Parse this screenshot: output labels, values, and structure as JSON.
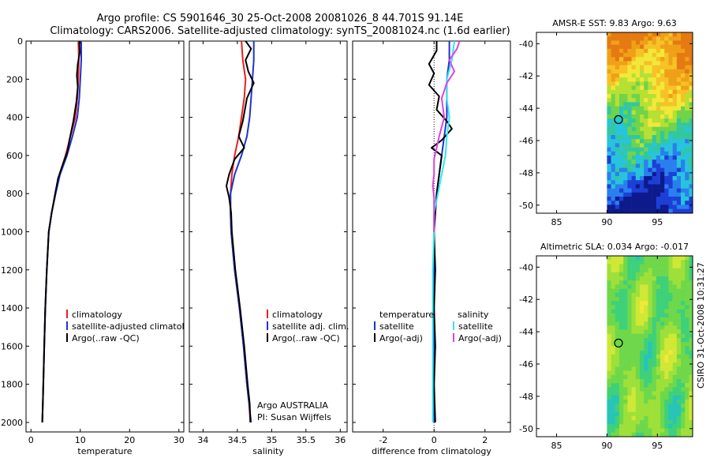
{
  "header": {
    "line1": "Argo profile: CS 5901646_30 25-Oct-2008 20081026_8 44.701S 91.14E",
    "line2": "Climatology: CARS2006. Satellite-adjusted climatology: synTS_20081024.nc (1.6d earlier)"
  },
  "side_stamp": "CSIRO 31-Oct-2008 10:31:27",
  "colors": {
    "climatology": "#e8201c",
    "satellite": "#1f33cf",
    "argo": "#000000",
    "sal_satellite": "#2fe6f0",
    "sal_argo": "#e040e0"
  },
  "chart_data": [
    {
      "id": "temperature",
      "type": "line",
      "xlabel": "temperature",
      "xlim": [
        -1,
        31
      ],
      "ylim": [
        2050,
        0
      ],
      "xticks": [
        0,
        10,
        20,
        30
      ],
      "yticks": [
        0,
        200,
        400,
        600,
        800,
        1000,
        1200,
        1400,
        1600,
        1800,
        2000
      ],
      "legend": [
        "climatology",
        "satellite-adjusted climatology",
        "Argo(..raw -QC)"
      ],
      "series": [
        {
          "name": "climatology",
          "color": "#e8201c",
          "points": [
            [
              9.6,
              0
            ],
            [
              9.7,
              100
            ],
            [
              9.6,
              200
            ],
            [
              9.4,
              300
            ],
            [
              9.0,
              400
            ],
            [
              8.0,
              500
            ],
            [
              7.0,
              600
            ],
            [
              5.8,
              700
            ],
            [
              5.0,
              800
            ],
            [
              4.2,
              900
            ],
            [
              3.6,
              1000
            ],
            [
              3.2,
              1200
            ],
            [
              2.9,
              1400
            ],
            [
              2.7,
              1600
            ],
            [
              2.5,
              1800
            ],
            [
              2.4,
              1900
            ],
            [
              2.3,
              2000
            ]
          ]
        },
        {
          "name": "satellite-adjusted climatology",
          "color": "#1f33cf",
          "points": [
            [
              10.2,
              0
            ],
            [
              10.2,
              100
            ],
            [
              10.0,
              200
            ],
            [
              9.8,
              300
            ],
            [
              9.4,
              400
            ],
            [
              8.4,
              500
            ],
            [
              7.3,
              600
            ],
            [
              5.9,
              700
            ],
            [
              5.0,
              800
            ],
            [
              4.2,
              900
            ],
            [
              3.6,
              1000
            ],
            [
              3.2,
              1200
            ],
            [
              2.9,
              1400
            ],
            [
              2.7,
              1600
            ],
            [
              2.5,
              1800
            ],
            [
              2.4,
              1900
            ],
            [
              2.3,
              2000
            ]
          ]
        },
        {
          "name": "Argo(..raw -QC)",
          "color": "#000000",
          "points": [
            [
              9.8,
              0
            ],
            [
              9.9,
              60
            ],
            [
              9.5,
              120
            ],
            [
              9.3,
              180
            ],
            [
              9.5,
              240
            ],
            [
              9.2,
              320
            ],
            [
              8.6,
              420
            ],
            [
              7.8,
              520
            ],
            [
              7.4,
              580
            ],
            [
              6.4,
              650
            ],
            [
              5.5,
              720
            ],
            [
              4.9,
              800
            ],
            [
              4.2,
              900
            ],
            [
              3.6,
              1000
            ],
            [
              3.2,
              1200
            ],
            [
              2.9,
              1400
            ],
            [
              2.7,
              1600
            ],
            [
              2.5,
              1800
            ],
            [
              2.4,
              1900
            ],
            [
              2.3,
              2000
            ]
          ]
        }
      ]
    },
    {
      "id": "salinity",
      "type": "line",
      "xlabel": "salinity",
      "xlim": [
        33.8,
        36.1
      ],
      "ylim": [
        2050,
        0
      ],
      "xticks": [
        34,
        34.5,
        35,
        35.5,
        36
      ],
      "legend": [
        "climatology",
        "satellite adj. clim.",
        "Argo(..raw -QC)"
      ],
      "annotation": [
        "Argo AUSTRALIA",
        "PI: Susan Wijffels"
      ],
      "series": [
        {
          "name": "climatology",
          "color": "#e8201c",
          "points": [
            [
              34.56,
              0
            ],
            [
              34.58,
              100
            ],
            [
              34.62,
              200
            ],
            [
              34.6,
              300
            ],
            [
              34.56,
              400
            ],
            [
              34.52,
              500
            ],
            [
              34.46,
              600
            ],
            [
              34.42,
              700
            ],
            [
              34.4,
              800
            ],
            [
              34.4,
              900
            ],
            [
              34.41,
              1000
            ],
            [
              34.46,
              1200
            ],
            [
              34.53,
              1400
            ],
            [
              34.59,
              1600
            ],
            [
              34.64,
              1800
            ],
            [
              34.67,
              1900
            ],
            [
              34.69,
              2000
            ]
          ]
        },
        {
          "name": "satellite adj. clim.",
          "color": "#1f33cf",
          "points": [
            [
              34.74,
              0
            ],
            [
              34.74,
              100
            ],
            [
              34.72,
              200
            ],
            [
              34.7,
              300
            ],
            [
              34.68,
              400
            ],
            [
              34.64,
              500
            ],
            [
              34.56,
              600
            ],
            [
              34.46,
              700
            ],
            [
              34.4,
              800
            ],
            [
              34.4,
              900
            ],
            [
              34.41,
              1000
            ],
            [
              34.46,
              1200
            ],
            [
              34.53,
              1400
            ],
            [
              34.59,
              1600
            ],
            [
              34.64,
              1800
            ],
            [
              34.67,
              1900
            ],
            [
              34.7,
              2000
            ]
          ]
        },
        {
          "name": "Argo(..raw -QC)",
          "color": "#000000",
          "points": [
            [
              34.62,
              0
            ],
            [
              34.7,
              40
            ],
            [
              34.62,
              100
            ],
            [
              34.66,
              160
            ],
            [
              34.74,
              220
            ],
            [
              34.64,
              300
            ],
            [
              34.58,
              420
            ],
            [
              34.52,
              500
            ],
            [
              34.6,
              560
            ],
            [
              34.46,
              620
            ],
            [
              34.38,
              700
            ],
            [
              34.34,
              760
            ],
            [
              34.38,
              820
            ],
            [
              34.41,
              900
            ],
            [
              34.42,
              1000
            ],
            [
              34.47,
              1200
            ],
            [
              34.54,
              1400
            ],
            [
              34.6,
              1600
            ],
            [
              34.65,
              1800
            ],
            [
              34.68,
              1900
            ],
            [
              34.69,
              2000
            ]
          ]
        }
      ]
    },
    {
      "id": "difference",
      "type": "line",
      "xlabel": "difference from climatology",
      "xlim": [
        -3.2,
        3.0
      ],
      "ylim": [
        2050,
        0
      ],
      "xticks": [
        -2,
        0,
        2
      ],
      "legend_headers": [
        "temperature",
        "salinity"
      ],
      "legend": [
        "satellite",
        "Argo(-adj)",
        "satellite",
        "Argo(-adj)"
      ],
      "series": [
        {
          "name": "temperature satellite",
          "color": "#1f33cf",
          "points": [
            [
              0.6,
              0
            ],
            [
              0.6,
              100
            ],
            [
              0.5,
              200
            ],
            [
              0.5,
              400
            ],
            [
              0.4,
              500
            ],
            [
              0.3,
              600
            ],
            [
              0.2,
              700
            ],
            [
              0.1,
              800
            ],
            [
              0.05,
              900
            ],
            [
              0.0,
              1000
            ],
            [
              0.0,
              1500
            ],
            [
              0.0,
              2000
            ]
          ]
        },
        {
          "name": "temperature Argo(-adj)",
          "color": "#000000",
          "points": [
            [
              0.1,
              0
            ],
            [
              0.1,
              50
            ],
            [
              -0.2,
              120
            ],
            [
              0.0,
              170
            ],
            [
              -0.2,
              230
            ],
            [
              0.2,
              290
            ],
            [
              0.1,
              360
            ],
            [
              0.5,
              420
            ],
            [
              0.7,
              460
            ],
            [
              0.3,
              520
            ],
            [
              -0.1,
              560
            ],
            [
              0.3,
              600
            ],
            [
              0.2,
              700
            ],
            [
              0.1,
              800
            ],
            [
              0.05,
              900
            ],
            [
              0.0,
              1000
            ],
            [
              0.05,
              1200
            ],
            [
              0.0,
              1400
            ],
            [
              0.05,
              1600
            ],
            [
              0.0,
              1800
            ],
            [
              0.05,
              2000
            ]
          ]
        },
        {
          "name": "salinity satellite",
          "color": "#2fe6f0",
          "points": [
            [
              0.8,
              0
            ],
            [
              0.7,
              100
            ],
            [
              0.5,
              200
            ],
            [
              0.5,
              300
            ],
            [
              0.6,
              400
            ],
            [
              0.5,
              500
            ],
            [
              0.45,
              600
            ],
            [
              0.3,
              700
            ],
            [
              0.15,
              800
            ],
            [
              0.0,
              900
            ],
            [
              0.0,
              1000
            ],
            [
              -0.05,
              1200
            ],
            [
              -0.05,
              1400
            ],
            [
              -0.05,
              1600
            ],
            [
              -0.05,
              1800
            ],
            [
              -0.05,
              2000
            ]
          ]
        },
        {
          "name": "salinity Argo(-adj)",
          "color": "#e040e0",
          "points": [
            [
              1.0,
              0
            ],
            [
              0.9,
              40
            ],
            [
              0.6,
              100
            ],
            [
              0.8,
              160
            ],
            [
              0.5,
              220
            ],
            [
              0.3,
              300
            ],
            [
              0.4,
              400
            ],
            [
              0.2,
              500
            ],
            [
              0.1,
              560
            ],
            [
              0.0,
              620
            ],
            [
              0.0,
              700
            ],
            [
              -0.05,
              760
            ],
            [
              0.0,
              820
            ],
            [
              0.0,
              900
            ],
            [
              0.0,
              1000
            ]
          ]
        }
      ]
    },
    {
      "id": "sst_map",
      "type": "heatmap",
      "title": "AMSR-E SST: 9.83  Argo: 9.63",
      "xlim": [
        83,
        98.5
      ],
      "ylim": [
        -50.5,
        -39.3
      ],
      "xticks": [
        85,
        90,
        95
      ],
      "yticks": [
        -40,
        -42,
        -44,
        -46,
        -48,
        -50
      ],
      "data_xmin": 90,
      "marker": [
        91.14,
        -44.701
      ],
      "palette": [
        "#0d1a8c",
        "#1c3fd6",
        "#2a7fee",
        "#27c4dc",
        "#33c7a0",
        "#6fd44a",
        "#b6e034",
        "#f2e83a",
        "#f6c227",
        "#f0a018",
        "#e57a12"
      ]
    },
    {
      "id": "sla_map",
      "type": "heatmap",
      "title": "Altimetric SLA: 0.034  Argo: -0.017",
      "xlim": [
        83,
        98.5
      ],
      "ylim": [
        -50.5,
        -39.3
      ],
      "xticks": [
        85,
        90,
        95
      ],
      "yticks": [
        -40,
        -42,
        -44,
        -46,
        -48,
        -50
      ],
      "data_xmin": 90,
      "marker": [
        91.14,
        -44.701
      ],
      "palette": [
        "#27c4b8",
        "#3fd07a",
        "#6ed84a",
        "#9ee03a",
        "#cfe836",
        "#f2e83a"
      ]
    }
  ]
}
